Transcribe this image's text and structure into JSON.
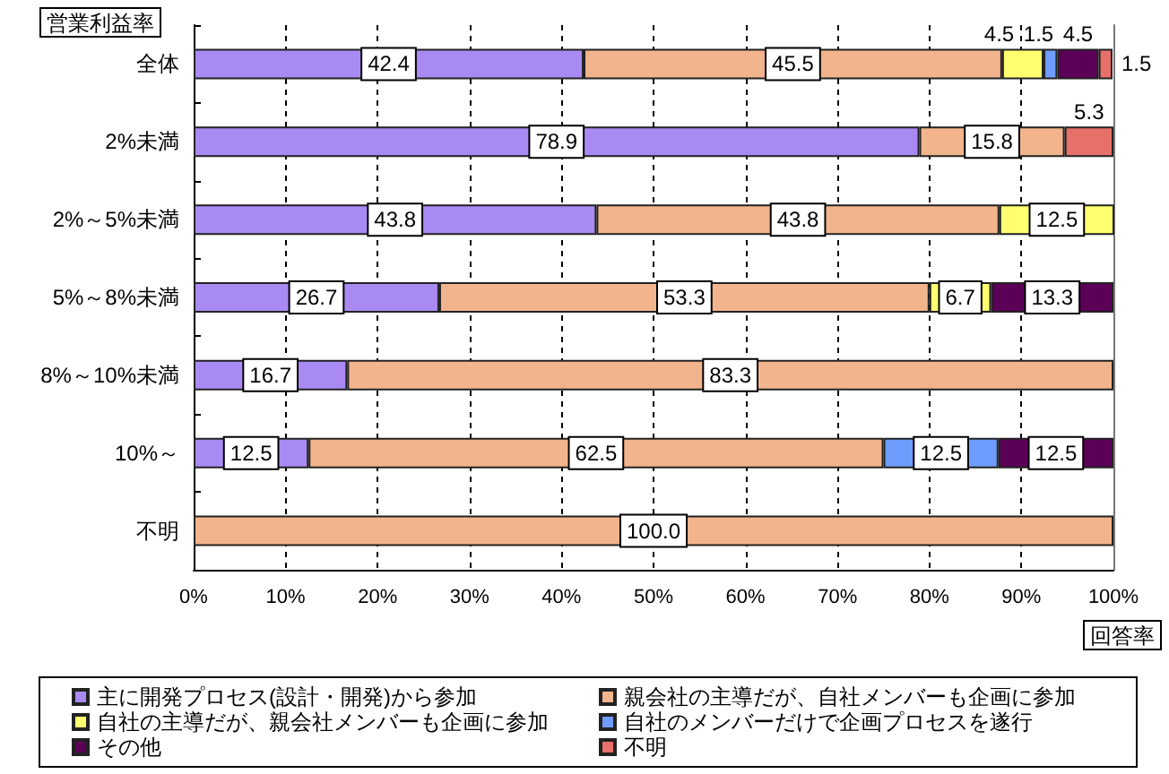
{
  "chart_data": {
    "type": "bar",
    "orientation": "horizontal",
    "stacked": true,
    "ylabel": "営業利益率",
    "xlabel": "回答率",
    "categories": [
      "全体",
      "2%未満",
      "2%～5%未満",
      "5%～8%未満",
      "8%～10%未満",
      "10%～",
      "不明"
    ],
    "series": [
      {
        "name": "主に開発プロセス(設計・開発)から参加",
        "color": "#a98af3",
        "values": [
          42.4,
          78.9,
          43.8,
          26.7,
          16.7,
          12.5,
          0
        ],
        "value_labels": [
          "42.4",
          "78.9",
          "43.8",
          "26.7",
          "16.7",
          "12.5",
          null
        ]
      },
      {
        "name": "親会社の主導だが、自社メンバーも企画に参加",
        "color": "#f2b48c",
        "values": [
          45.5,
          15.8,
          43.8,
          53.3,
          83.3,
          62.5,
          100
        ],
        "value_labels": [
          "45.5",
          "15.8",
          "43.8",
          "53.3",
          "83.3",
          "62.5",
          "100.0"
        ]
      },
      {
        "name": "自社の主導だが、親会社メンバーも企画に参加",
        "color": "#ffff70",
        "values": [
          4.5,
          0,
          12.5,
          6.7,
          0,
          0,
          0
        ],
        "value_labels": [
          "4.5",
          null,
          "12.5",
          "6.7",
          null,
          null,
          null
        ]
      },
      {
        "name": "自社のメンバーだけで企画プロセスを遂行",
        "color": "#6f9cff",
        "values": [
          1.5,
          0,
          0,
          0,
          0,
          12.5,
          0
        ],
        "value_labels": [
          "1.5",
          null,
          null,
          null,
          null,
          "12.5",
          null
        ]
      },
      {
        "name": "その他",
        "color": "#5c0057",
        "values": [
          4.5,
          0,
          0,
          13.3,
          0,
          12.5,
          0
        ],
        "value_labels": [
          "4.5",
          null,
          null,
          "13.3",
          null,
          "12.5",
          null
        ]
      },
      {
        "name": "不明",
        "color": "#e8706a",
        "values": [
          1.5,
          5.3,
          0,
          0,
          0,
          0,
          0
        ],
        "value_labels": [
          "1.5",
          "5.3",
          null,
          null,
          null,
          null,
          null
        ]
      }
    ],
    "xlim": [
      0,
      100
    ],
    "xticks": [
      {
        "value": 0,
        "label": "0%"
      },
      {
        "value": 10,
        "label": "10%"
      },
      {
        "value": 20,
        "label": "20%"
      },
      {
        "value": 30,
        "label": "30%"
      },
      {
        "value": 40,
        "label": "40%"
      },
      {
        "value": 50,
        "label": "50%"
      },
      {
        "value": 60,
        "label": "60%"
      },
      {
        "value": 70,
        "label": "70%"
      },
      {
        "value": 80,
        "label": "80%"
      },
      {
        "value": 90,
        "label": "90%"
      },
      {
        "value": 100,
        "label": "100%"
      }
    ],
    "grid": "x",
    "legend": "bottom"
  }
}
